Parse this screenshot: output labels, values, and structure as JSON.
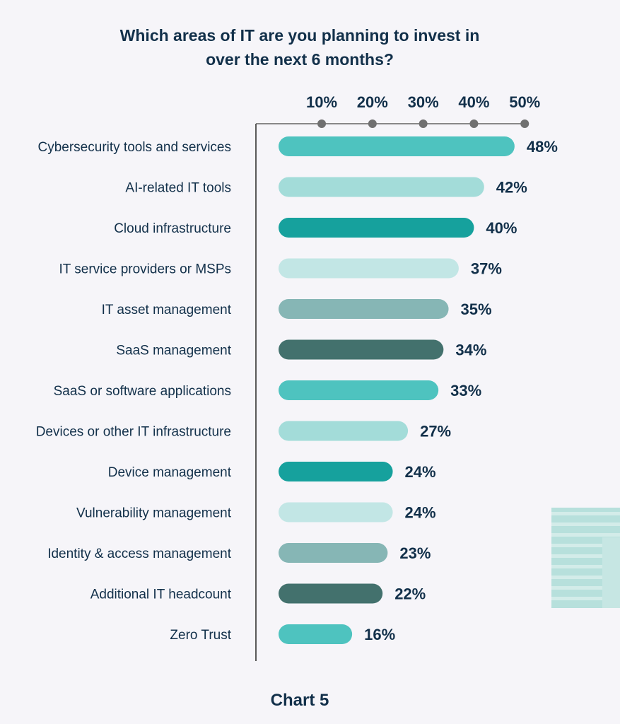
{
  "chart_data": {
    "type": "bar",
    "orientation": "horizontal",
    "title": "Which areas of IT are you planning to invest in over the next 6 months?",
    "title_lines": [
      "Which areas of IT are you planning to invest in",
      "over the next 6 months?"
    ],
    "caption": "Chart 5",
    "categories": [
      "Cybersecurity tools and services",
      "AI-related IT tools",
      "Cloud infrastructure",
      "IT service providers or MSPs",
      "IT asset management",
      "SaaS management",
      "SaaS or software applications",
      "Devices or other IT infrastructure",
      "Device management",
      "Vulnerability management",
      "Identity & access management",
      "Additional IT headcount",
      "Zero Trust"
    ],
    "values": [
      48,
      42,
      40,
      37,
      35,
      34,
      33,
      27,
      24,
      24,
      23,
      22,
      16
    ],
    "value_labels": [
      "48%",
      "42%",
      "40%",
      "37%",
      "35%",
      "34%",
      "33%",
      "27%",
      "24%",
      "24%",
      "23%",
      "22%",
      "16%"
    ],
    "bar_colors": [
      "#4ec3bf",
      "#a3dcd9",
      "#16a19d",
      "#c2e6e5",
      "#86b6b5",
      "#43716d",
      "#4ec3bf",
      "#a3dcd9",
      "#16a19d",
      "#c2e6e5",
      "#86b6b5",
      "#43716d",
      "#4ec3bf"
    ],
    "x_ticks": [
      10,
      20,
      30,
      40,
      50
    ],
    "x_tick_labels": [
      "10%",
      "20%",
      "30%",
      "40%",
      "50%"
    ],
    "axis_position": "top",
    "grid": false,
    "colors": {
      "text": "#12304a",
      "axis": "#888888",
      "background": "#f6f5f9",
      "decoration": "#b7e0dc"
    }
  }
}
